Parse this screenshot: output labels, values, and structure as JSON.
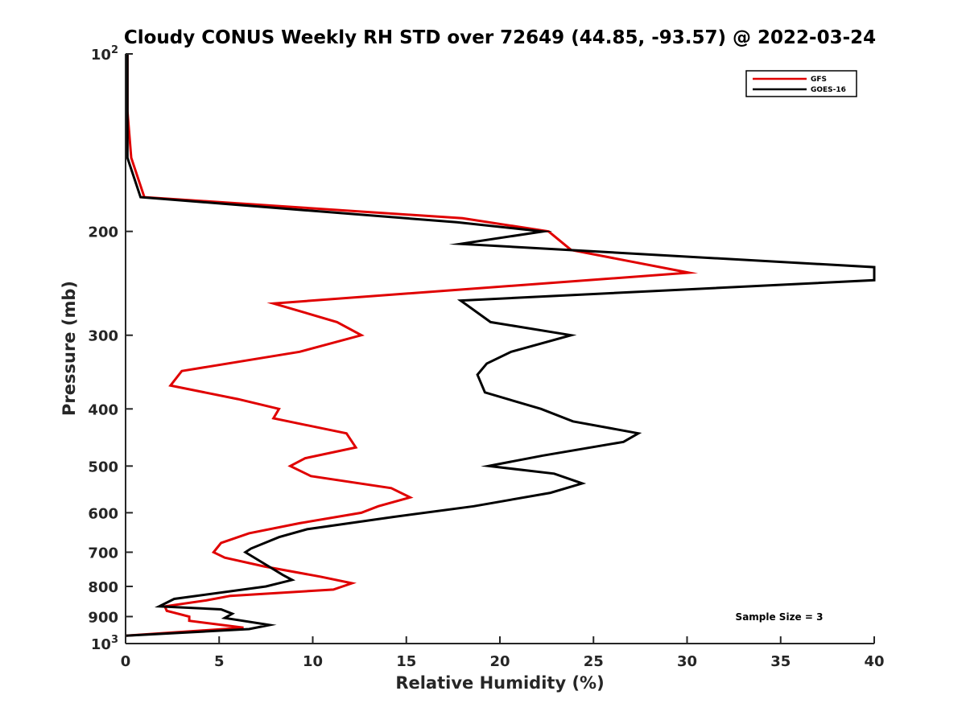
{
  "chart_data": {
    "type": "line",
    "title": "Cloudy CONUS Weekly RH STD over 72649 (44.85, -93.57) @ 2022-03-24",
    "xlabel": "Relative Humidity (%)",
    "ylabel": "Pressure (mb)",
    "xlim": [
      0,
      40
    ],
    "ylim": [
      100,
      1000
    ],
    "y_scale": "log",
    "y_reversed": true,
    "xticks": [
      0,
      5,
      10,
      15,
      20,
      25,
      30,
      35,
      40
    ],
    "xtick_labels": [
      "0",
      "5",
      "10",
      "15",
      "20",
      "25",
      "30",
      "35",
      "40"
    ],
    "yticks": [
      100,
      200,
      300,
      400,
      500,
      600,
      700,
      800,
      900,
      1000
    ],
    "ytick_labels": [
      {
        "base": "10",
        "sup": "2"
      },
      {
        "base": "200",
        "sup": ""
      },
      {
        "base": "300",
        "sup": ""
      },
      {
        "base": "400",
        "sup": ""
      },
      {
        "base": "500",
        "sup": ""
      },
      {
        "base": "600",
        "sup": ""
      },
      {
        "base": "700",
        "sup": ""
      },
      {
        "base": "800",
        "sup": ""
      },
      {
        "base": "900",
        "sup": ""
      },
      {
        "base": "10",
        "sup": "3"
      }
    ],
    "grid": false,
    "legend_position": "top-right",
    "series": [
      {
        "name": "GFS",
        "color": "#e00000",
        "points": [
          [
            0.1,
            100
          ],
          [
            0.1,
            125
          ],
          [
            0.3,
            150
          ],
          [
            1.0,
            175
          ],
          [
            18.0,
            190
          ],
          [
            22.6,
            200
          ],
          [
            23.8,
            215
          ],
          [
            30.1,
            235
          ],
          [
            7.9,
            265
          ],
          [
            11.3,
            285
          ],
          [
            12.6,
            300
          ],
          [
            9.3,
            320
          ],
          [
            3.0,
            345
          ],
          [
            2.4,
            365
          ],
          [
            6.0,
            385
          ],
          [
            8.2,
            400
          ],
          [
            7.9,
            415
          ],
          [
            11.8,
            440
          ],
          [
            12.3,
            465
          ],
          [
            9.6,
            485
          ],
          [
            8.8,
            500
          ],
          [
            9.9,
            520
          ],
          [
            14.2,
            545
          ],
          [
            15.2,
            565
          ],
          [
            13.5,
            585
          ],
          [
            12.6,
            600
          ],
          [
            9.3,
            625
          ],
          [
            6.6,
            650
          ],
          [
            5.1,
            675
          ],
          [
            4.7,
            700
          ],
          [
            5.3,
            715
          ],
          [
            7.4,
            740
          ],
          [
            10.4,
            770
          ],
          [
            12.1,
            790
          ],
          [
            11.1,
            810
          ],
          [
            5.6,
            830
          ],
          [
            4.3,
            845
          ],
          [
            2.1,
            865
          ],
          [
            2.2,
            880
          ],
          [
            3.4,
            900
          ],
          [
            3.4,
            915
          ],
          [
            6.3,
            940
          ],
          [
            0.0,
            970
          ]
        ]
      },
      {
        "name": "GOES-16",
        "color": "#000000",
        "points": [
          [
            0.1,
            100
          ],
          [
            0.1,
            125
          ],
          [
            0.1,
            150
          ],
          [
            0.8,
            175
          ],
          [
            17.7,
            193
          ],
          [
            22.3,
            200
          ],
          [
            17.9,
            210
          ],
          [
            40.0,
            230
          ],
          [
            40.0,
            242
          ],
          [
            17.9,
            262
          ],
          [
            19.5,
            285
          ],
          [
            23.8,
            300
          ],
          [
            20.6,
            320
          ],
          [
            19.3,
            335
          ],
          [
            18.8,
            350
          ],
          [
            19.2,
            375
          ],
          [
            22.2,
            400
          ],
          [
            23.9,
            420
          ],
          [
            27.4,
            440
          ],
          [
            26.6,
            455
          ],
          [
            22.3,
            480
          ],
          [
            19.4,
            500
          ],
          [
            22.9,
            515
          ],
          [
            24.4,
            535
          ],
          [
            22.7,
            555
          ],
          [
            18.6,
            585
          ],
          [
            14.3,
            610
          ],
          [
            9.7,
            640
          ],
          [
            8.2,
            660
          ],
          [
            6.7,
            690
          ],
          [
            6.4,
            700
          ],
          [
            7.5,
            735
          ],
          [
            8.4,
            765
          ],
          [
            8.9,
            780
          ],
          [
            7.5,
            800
          ],
          [
            2.6,
            840
          ],
          [
            1.8,
            865
          ],
          [
            5.1,
            875
          ],
          [
            5.7,
            890
          ],
          [
            5.3,
            905
          ],
          [
            7.7,
            930
          ],
          [
            6.6,
            945
          ],
          [
            0.0,
            970
          ]
        ]
      }
    ],
    "annotation": "Sample Size = 3"
  }
}
